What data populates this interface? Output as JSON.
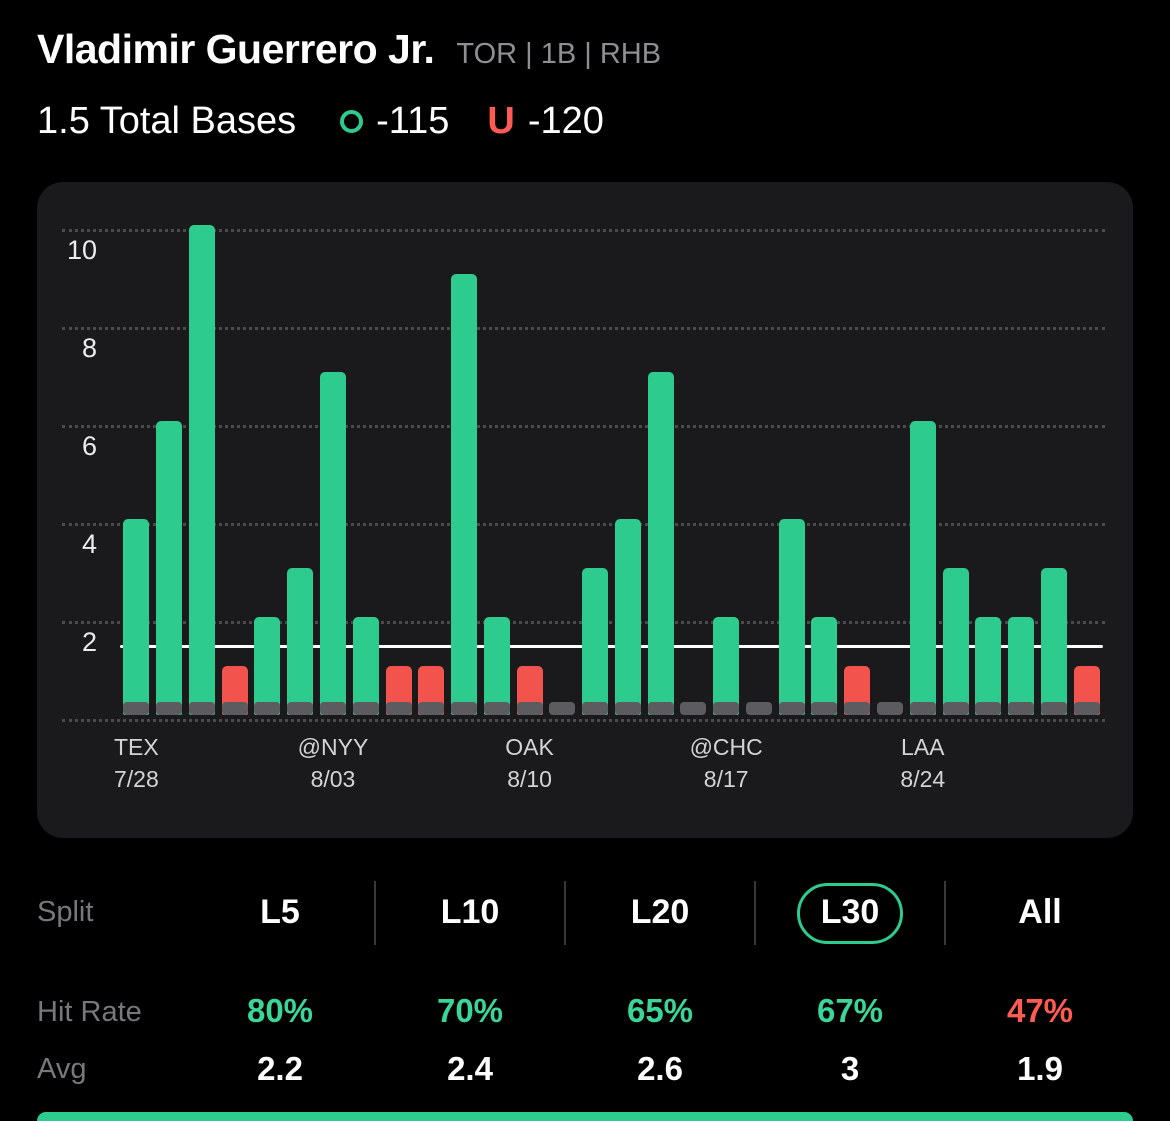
{
  "player": {
    "name": "Vladimir Guerrero Jr.",
    "meta": "TOR | 1B | RHB"
  },
  "prop": {
    "label": "1.5 Total Bases",
    "over_symbol": "O",
    "over_odds": "-115",
    "under_symbol": "U",
    "under_odds": "-120"
  },
  "chart_data": {
    "type": "bar",
    "ylim": [
      0,
      10.5
    ],
    "yticks": [
      2,
      4,
      6,
      8,
      10
    ],
    "prop_line": 1.5,
    "grid": "dotted horizontal",
    "values": [
      4,
      6,
      10,
      1,
      2,
      3,
      7,
      2,
      1,
      1,
      9,
      2,
      1,
      0,
      3,
      4,
      7,
      0,
      2,
      0,
      4,
      2,
      1,
      0,
      6,
      3,
      2,
      2,
      3,
      1
    ],
    "color_rule": {
      "zero": "gray",
      "under_line": "red",
      "over_line": "green"
    },
    "x_labels": [
      {
        "team": "TEX",
        "date": "7/28",
        "bar_index": 0
      },
      {
        "team": "@NYY",
        "date": "8/03",
        "bar_index": 6
      },
      {
        "team": "OAK",
        "date": "8/10",
        "bar_index": 12
      },
      {
        "team": "@CHC",
        "date": "8/17",
        "bar_index": 18
      },
      {
        "team": "LAA",
        "date": "8/24",
        "bar_index": 24
      }
    ]
  },
  "stats": {
    "split_label": "Split",
    "hit_rate_label": "Hit Rate",
    "avg_label": "Avg",
    "columns": [
      {
        "split": "L5",
        "hit_rate": "80%",
        "avg": "2.2",
        "selected": false,
        "hit_status": "over"
      },
      {
        "split": "L10",
        "hit_rate": "70%",
        "avg": "2.4",
        "selected": false,
        "hit_status": "over"
      },
      {
        "split": "L20",
        "hit_rate": "65%",
        "avg": "2.6",
        "selected": false,
        "hit_status": "over"
      },
      {
        "split": "L30",
        "hit_rate": "67%",
        "avg": "3",
        "selected": true,
        "hit_status": "over"
      },
      {
        "split": "All",
        "hit_rate": "47%",
        "avg": "1.9",
        "selected": false,
        "hit_status": "under"
      }
    ]
  },
  "colors": {
    "accent_green": "#2ecb8e",
    "green_text": "#3bd598",
    "accent_red": "#f2544d",
    "red_text": "#ff5b54",
    "stub_gray": "#5c5c60",
    "card_bg": "#1a1a1c",
    "page_bg": "#000000",
    "grid_dot": "#4b4b4e",
    "muted_text": "#8e8e93"
  }
}
